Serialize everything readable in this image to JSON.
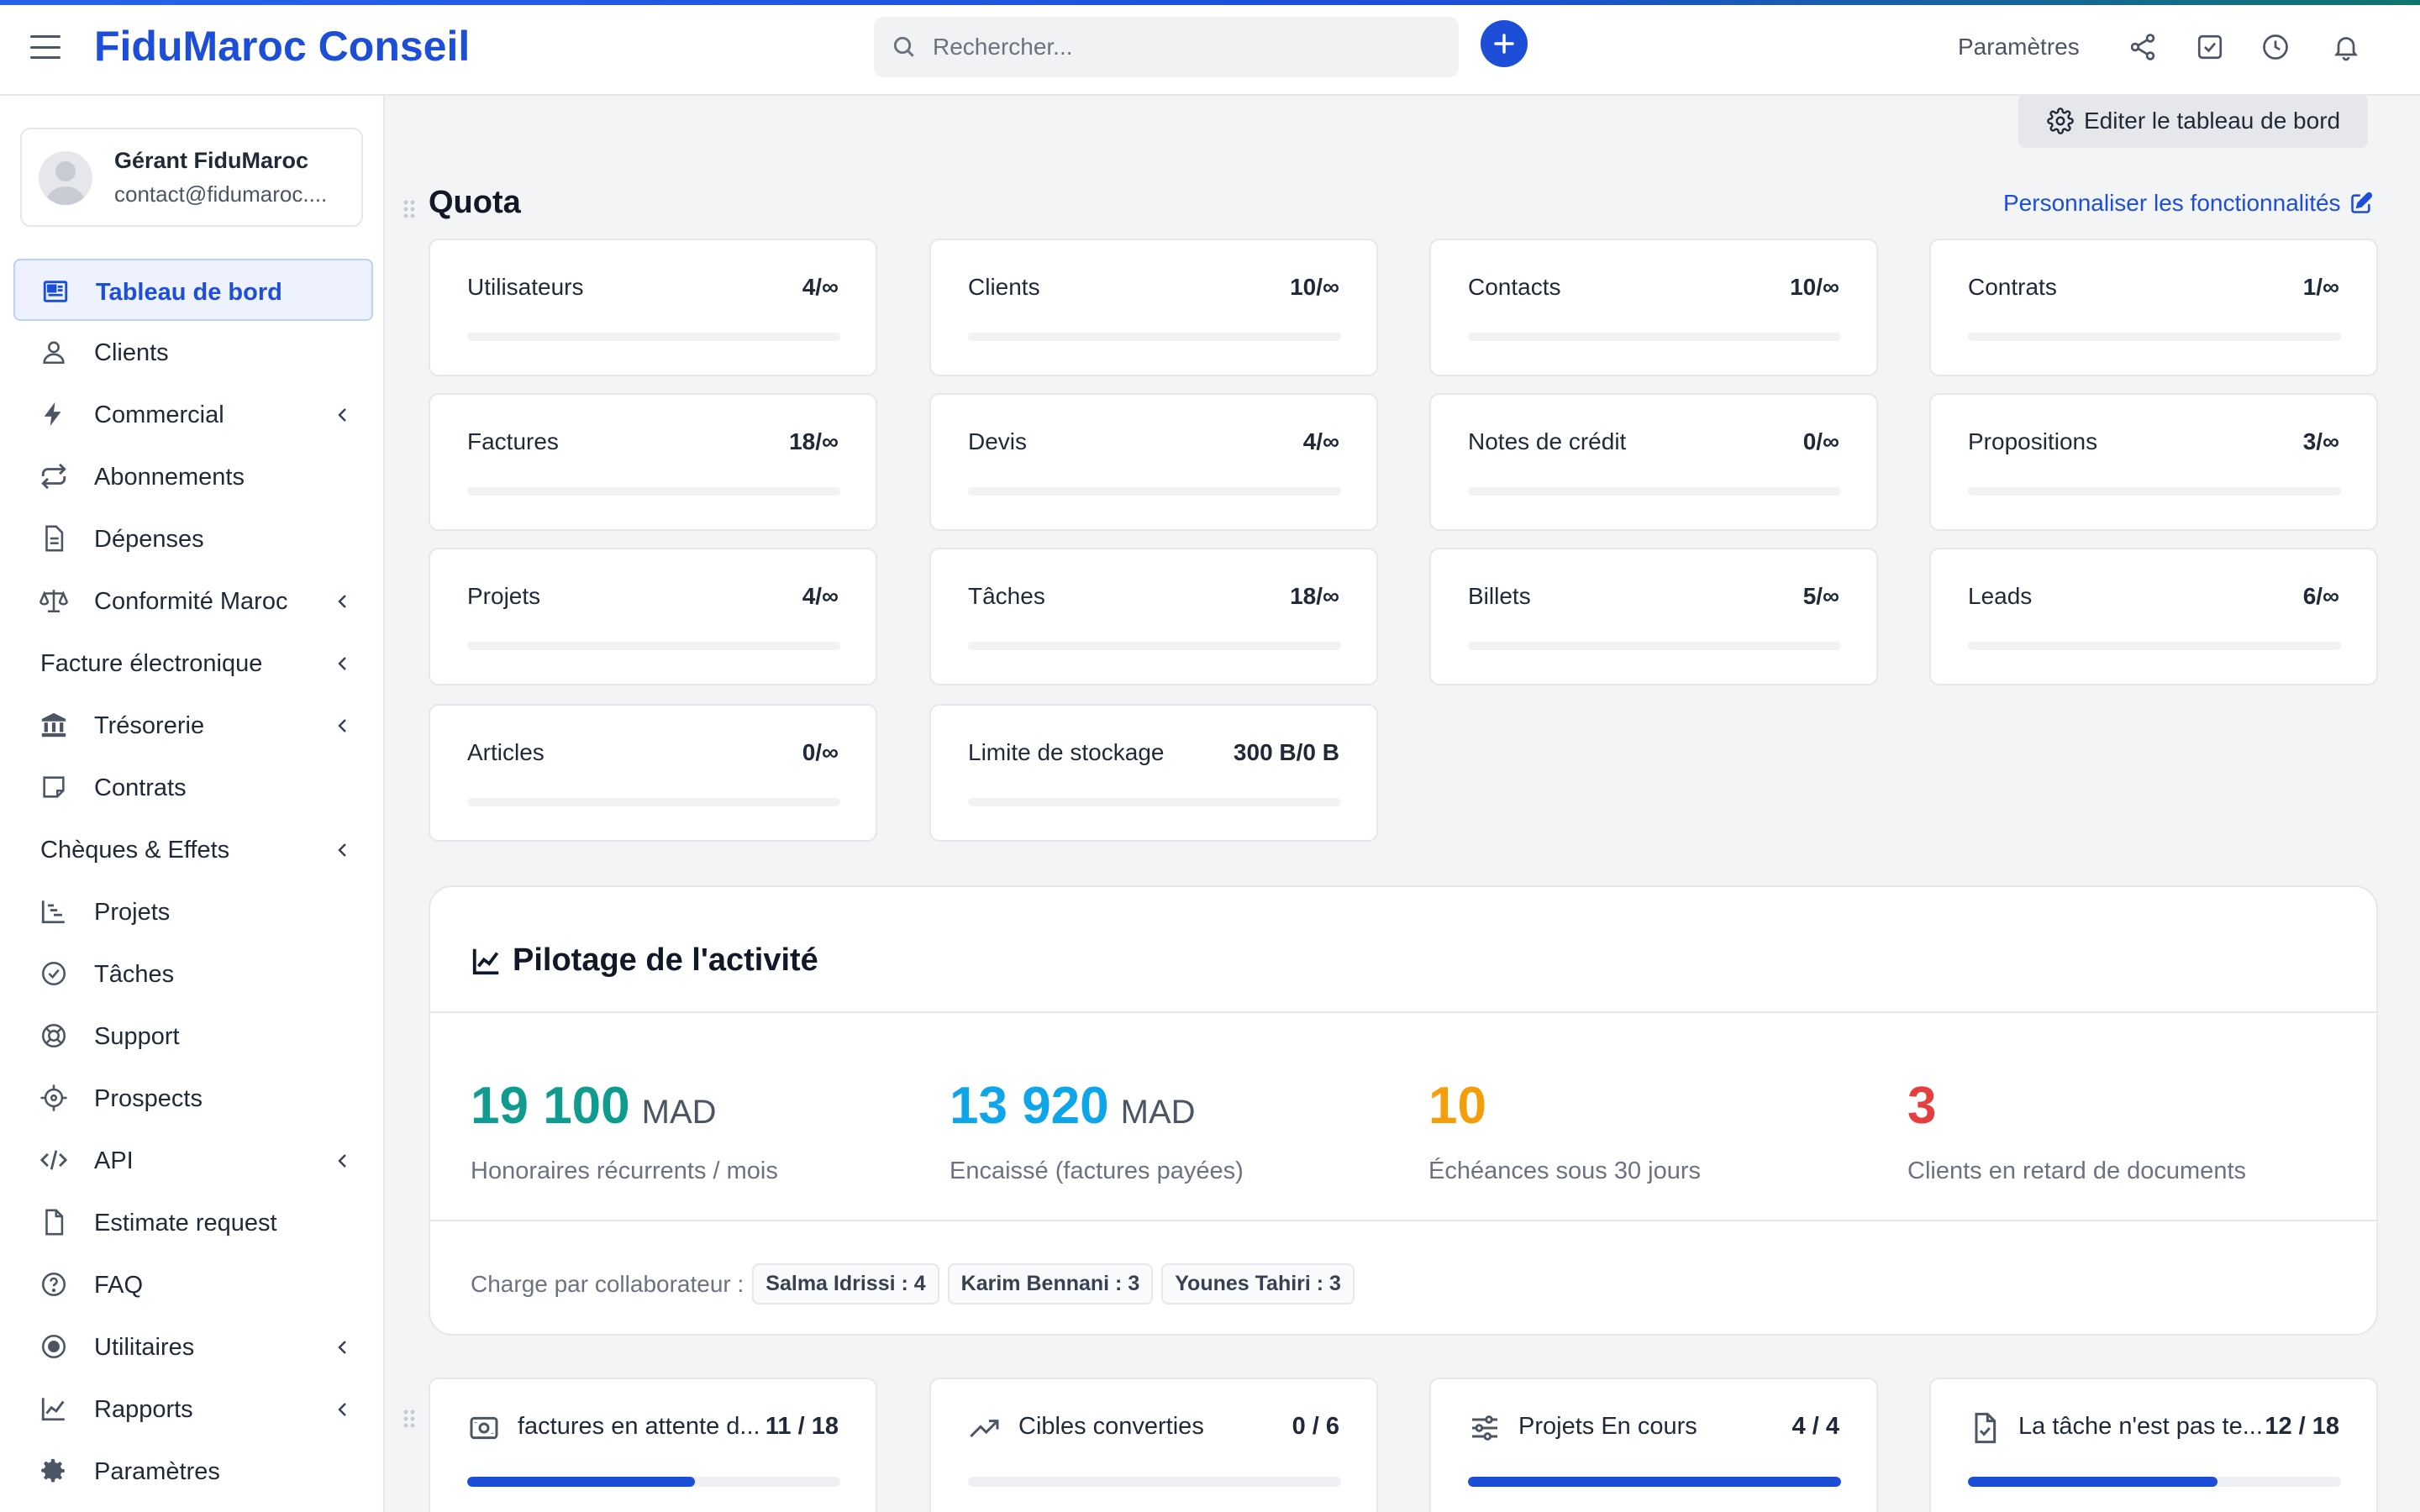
{
  "app": {
    "brand": "FiduMaroc Conseil"
  },
  "header": {
    "search_placeholder": "Rechercher...",
    "settings_label": "Paramètres",
    "icons": [
      "share-icon",
      "checkbox-icon",
      "clock-icon",
      "bell-icon"
    ]
  },
  "profile": {
    "name": "Gérant FiduMaroc",
    "email": "contact@fidumaroc...."
  },
  "sidebar": {
    "items": [
      {
        "label": "Tableau de bord",
        "icon": "dashboard-icon",
        "active": true,
        "submenu": false
      },
      {
        "label": "Clients",
        "icon": "user-icon",
        "submenu": false
      },
      {
        "label": "Commercial",
        "icon": "bolt-icon",
        "submenu": true
      },
      {
        "label": "Abonnements",
        "icon": "repeat-icon",
        "submenu": false
      },
      {
        "label": "Dépenses",
        "icon": "document-icon",
        "submenu": false
      },
      {
        "label": "Conformité Maroc",
        "icon": "scale-icon",
        "submenu": true
      },
      {
        "label": "Facture électronique",
        "icon": "",
        "submenu": true
      },
      {
        "label": "Trésorerie",
        "icon": "bank-icon",
        "submenu": true
      },
      {
        "label": "Contrats",
        "icon": "note-icon",
        "submenu": false
      },
      {
        "label": "Chèques & Effets",
        "icon": "",
        "submenu": true
      },
      {
        "label": "Projets",
        "icon": "chart-steps-icon",
        "submenu": false
      },
      {
        "label": "Tâches",
        "icon": "check-circle-icon",
        "submenu": false
      },
      {
        "label": "Support",
        "icon": "lifebuoy-icon",
        "submenu": false
      },
      {
        "label": "Prospects",
        "icon": "crosshair-icon",
        "submenu": false
      },
      {
        "label": "API",
        "icon": "code-icon",
        "submenu": true
      },
      {
        "label": "Estimate request",
        "icon": "file-icon",
        "submenu": false
      },
      {
        "label": "FAQ",
        "icon": "question-icon",
        "submenu": false
      },
      {
        "label": "Utilitaires",
        "icon": "radio-icon",
        "submenu": true
      },
      {
        "label": "Rapports",
        "icon": "line-chart-icon",
        "submenu": true
      },
      {
        "label": "Paramètres",
        "icon": "gear-icon",
        "submenu": false
      }
    ]
  },
  "main": {
    "edit_dashboard": "Editer le tableau de bord",
    "quota_title": "Quota",
    "customize_link": "Personnaliser les fonctionnalités",
    "quota": [
      {
        "label": "Utilisateurs",
        "value": "4/∞"
      },
      {
        "label": "Clients",
        "value": "10/∞"
      },
      {
        "label": "Contacts",
        "value": "10/∞"
      },
      {
        "label": "Contrats",
        "value": "1/∞"
      },
      {
        "label": "Factures",
        "value": "18/∞"
      },
      {
        "label": "Devis",
        "value": "4/∞"
      },
      {
        "label": "Notes de crédit",
        "value": "0/∞"
      },
      {
        "label": "Propositions",
        "value": "3/∞"
      },
      {
        "label": "Projets",
        "value": "4/∞"
      },
      {
        "label": "Tâches",
        "value": "18/∞"
      },
      {
        "label": "Billets",
        "value": "5/∞"
      },
      {
        "label": "Leads",
        "value": "6/∞"
      },
      {
        "label": "Articles",
        "value": "0/∞"
      },
      {
        "label": "Limite de stockage",
        "value": "300 B/0 B"
      }
    ],
    "pilotage": {
      "title": "Pilotage de l'activité",
      "kpis": [
        {
          "value": "19 100",
          "unit": "MAD",
          "label": "Honoraires récurrents / mois",
          "color": "#0f9b8e"
        },
        {
          "value": "13 920",
          "unit": "MAD",
          "label": "Encaissé (factures payées)",
          "color": "#0ea5e9"
        },
        {
          "value": "10",
          "unit": "",
          "label": "Échéances sous 30 jours",
          "color": "#f59e0b"
        },
        {
          "value": "3",
          "unit": "",
          "label": "Clients en retard de documents",
          "color": "#e53e3e"
        }
      ],
      "charge_label": "Charge par collaborateur :",
      "charges": [
        "Salma Idrissi : 4",
        "Karim Bennani : 3",
        "Younes Tahiri : 3"
      ]
    },
    "bottom_cards": [
      {
        "label": "factures en attente d...",
        "value": "11 / 18",
        "icon": "invoice-icon",
        "progress": 0.61
      },
      {
        "label": "Cibles converties",
        "value": "0 / 6",
        "icon": "trend-up-icon",
        "progress": 0
      },
      {
        "label": "Projets En cours",
        "value": "4 / 4",
        "icon": "sliders-icon",
        "progress": 1
      },
      {
        "label": "La tâche n'est pas te...",
        "value": "12 / 18",
        "icon": "file-check-icon",
        "progress": 0.67
      }
    ]
  }
}
